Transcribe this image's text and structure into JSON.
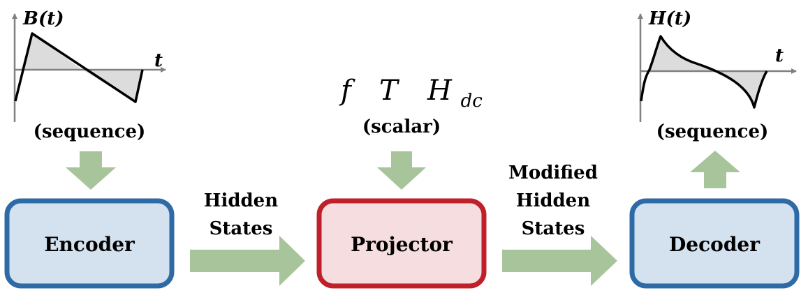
{
  "input_plot": {
    "y_label": "B(t)",
    "x_label": "t",
    "caption": "(sequence)"
  },
  "output_plot": {
    "y_label": "H(t)",
    "x_label": "t",
    "caption": "(sequence)"
  },
  "scalars": {
    "f": "f",
    "T": "T",
    "H": "H",
    "H_sub": "dc",
    "caption": "(scalar)"
  },
  "blocks": {
    "encoder": "Encoder",
    "projector": "Projector",
    "decoder": "Decoder"
  },
  "arrow_labels": {
    "enc_to_proj": [
      "Hidden",
      "States"
    ],
    "proj_to_dec": [
      "Modified",
      "Hidden",
      "States"
    ]
  },
  "colors": {
    "block_blue_fill": "#d4e1ee",
    "block_blue_stroke": "#2e6ba6",
    "block_red_fill": "#f5dde0",
    "block_red_stroke": "#c0202a",
    "arrow": "#a8c49a",
    "plot_fill": "#dcdcdc",
    "axis": "#808080"
  }
}
